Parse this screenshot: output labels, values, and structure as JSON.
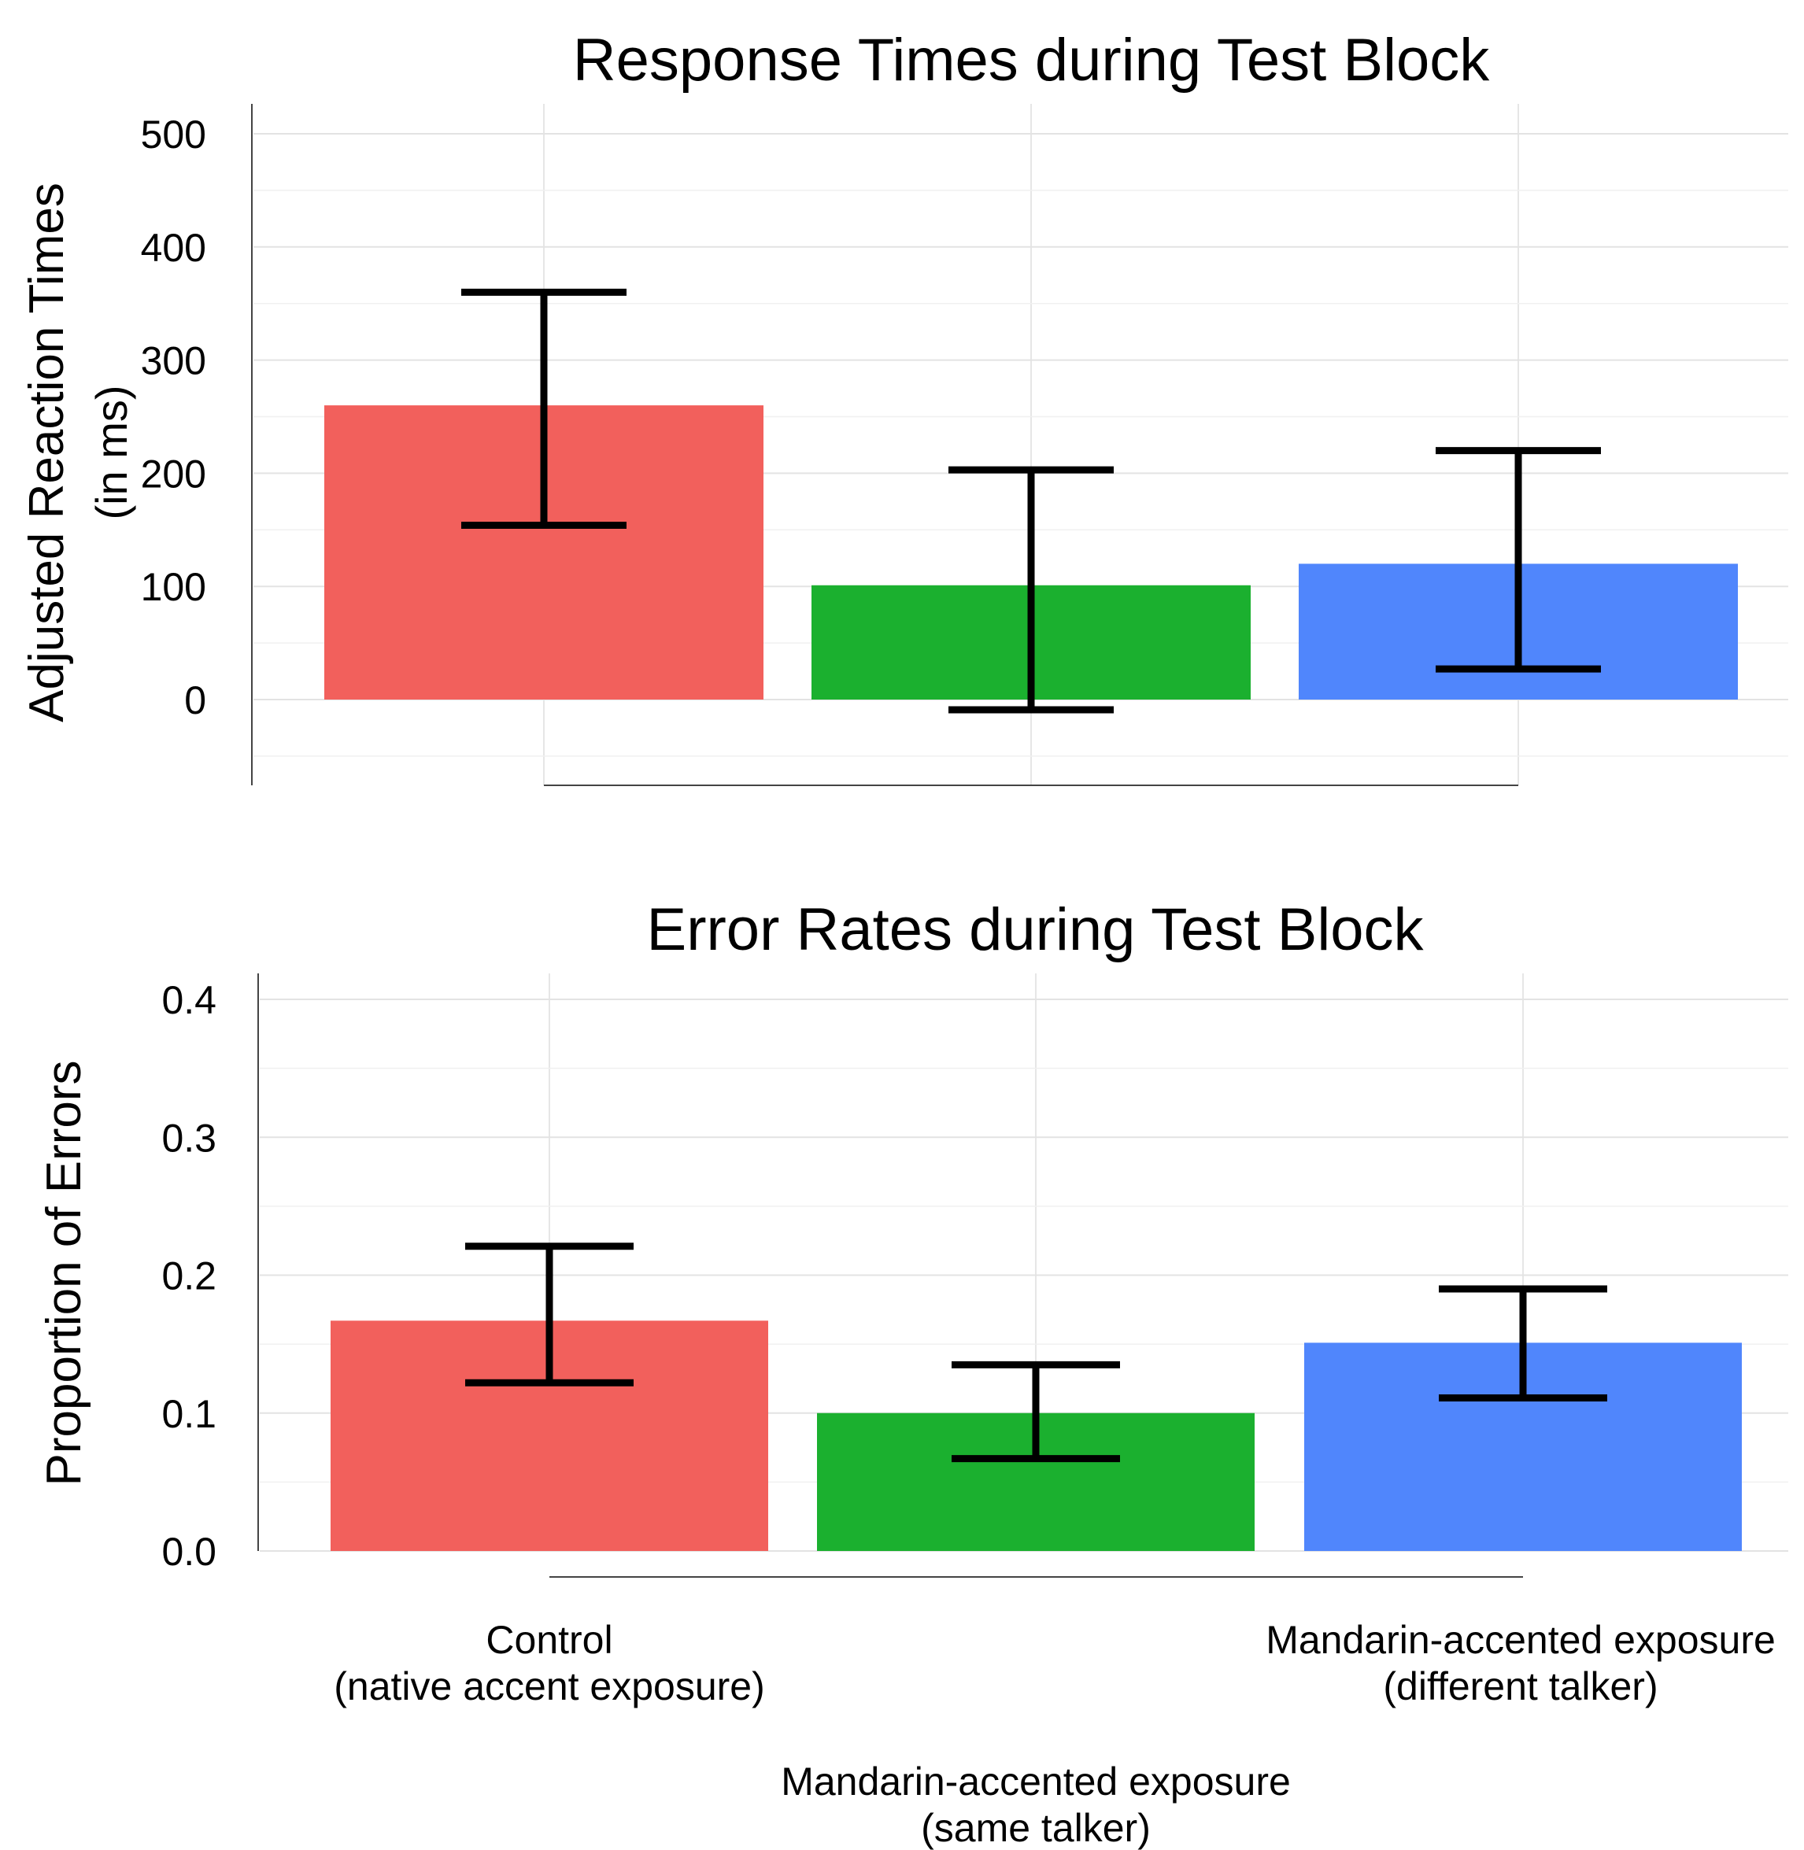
{
  "chart_data": [
    {
      "type": "bar",
      "title": "Response Times during Test Block",
      "ylabel_lines": [
        "Adjusted Reaction Times",
        "(in ms)"
      ],
      "xlabel": "",
      "ylim": [
        -75,
        525
      ],
      "yticks": [
        0,
        100,
        200,
        300,
        400,
        500
      ],
      "ytick_labels": [
        "0",
        "100",
        "200",
        "300",
        "400",
        "500"
      ],
      "grid": true,
      "categories": [
        "Control (native accent exposure)",
        "Mandarin-accented exposure (same talker)",
        "Mandarin-accented exposure (different talker)"
      ],
      "values": [
        260,
        101,
        120
      ],
      "error_low": [
        154,
        -9,
        27
      ],
      "error_high": [
        360,
        203,
        220
      ],
      "colors": [
        "#F2605C",
        "#1BB02F",
        "#5086FC"
      ]
    },
    {
      "type": "bar",
      "title": "Error Rates during Test Block",
      "ylabel_lines": [
        "Proportion of Errors"
      ],
      "xlabel": "",
      "ylim": [
        0,
        0.42
      ],
      "yticks": [
        0.0,
        0.1,
        0.2,
        0.3,
        0.4
      ],
      "ytick_labels": [
        "0.0",
        "0.1",
        "0.2",
        "0.3",
        "0.4"
      ],
      "grid": true,
      "categories": [
        "Control (native accent exposure)",
        "Mandarin-accented exposure (same talker)",
        "Mandarin-accented exposure (different talker)"
      ],
      "values": [
        0.167,
        0.1,
        0.151
      ],
      "error_low": [
        0.122,
        0.067,
        0.111
      ],
      "error_high": [
        0.221,
        0.135,
        0.19
      ],
      "colors": [
        "#F2605C",
        "#1BB02F",
        "#5086FC"
      ]
    }
  ],
  "x_axis_labels": [
    {
      "line1": "Control",
      "line2": "(native accent exposure)"
    },
    {
      "line1": "Mandarin-accented exposure",
      "line2": "(same talker)"
    },
    {
      "line1": "Mandarin-accented exposure",
      "line2": "(different talker)"
    }
  ]
}
